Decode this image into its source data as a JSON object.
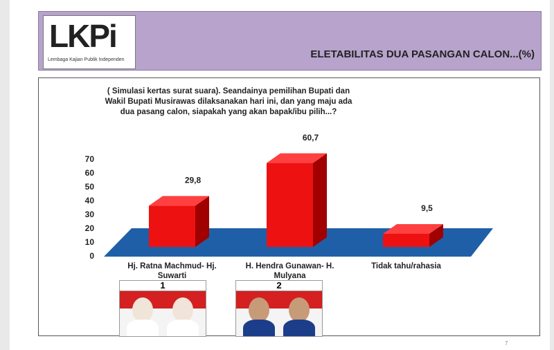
{
  "header": {
    "logo": "LKPi",
    "logo_subtitle": "Lembaga Kajian Publik Independen",
    "title": "ELETABILITAS DUA PASANGAN CALON...(%)"
  },
  "chart_data": {
    "type": "bar3d",
    "subtitle": "( Simulasi kertas surat suara). Seandainya pemilihan Bupati dan Wakil Bupati Musirawas dilaksanakan hari ini, dan yang maju ada dua pasang calon,  siapakah yang akan bapak/ibu pilih...?",
    "categories": [
      "Hj. Ratna Machmud- Hj. Suwarti",
      "H. Hendra Gunawan- H. Mulyana",
      "Tidak tahu/rahasia"
    ],
    "values": [
      29.8,
      60.7,
      9.5
    ],
    "value_labels": [
      "29,8",
      "60,7",
      "9,5"
    ],
    "color": "#ee1111",
    "ylim": [
      0,
      70
    ],
    "yticks": [
      0,
      10,
      20,
      30,
      40,
      50,
      60,
      70
    ]
  },
  "photos": [
    {
      "number": "1"
    },
    {
      "number": "2"
    }
  ],
  "page_number": "7"
}
